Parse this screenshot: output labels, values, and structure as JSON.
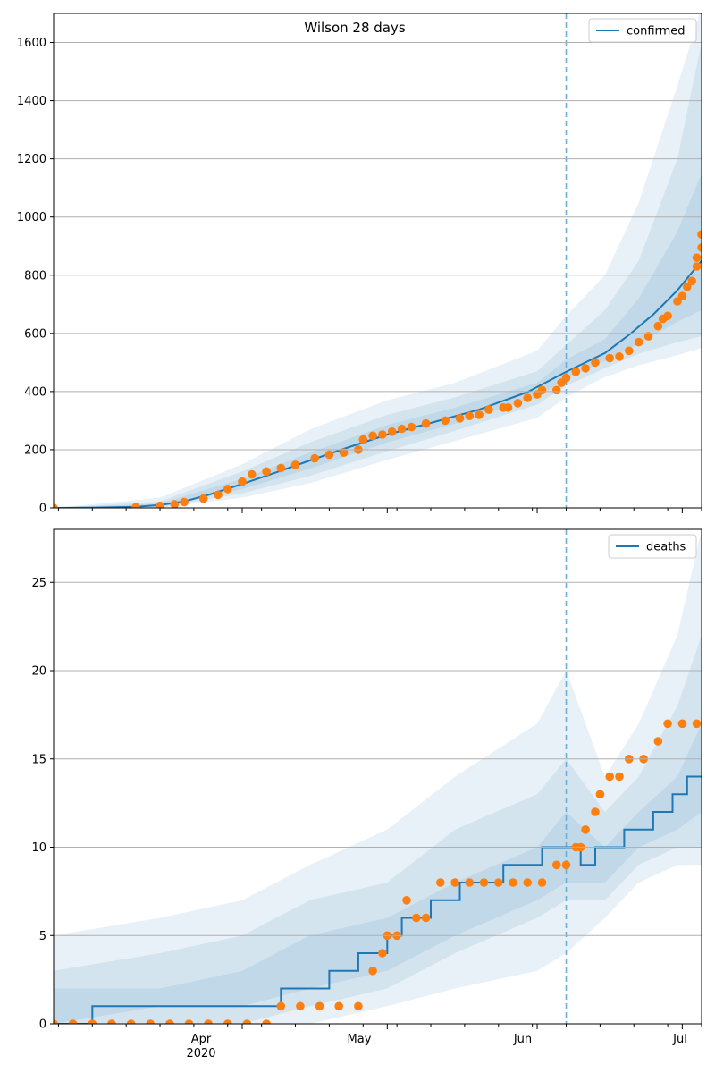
{
  "title": "Wilson 28 days",
  "x_tick_labels": [
    "Apr",
    "2020",
    "May",
    "Jun",
    "Jul"
  ],
  "colors": {
    "model_line": "#1f77b4",
    "observed_points": "#ff7f0e",
    "band_fill": "#1f77b4",
    "forecast_start_line": "#6baed6",
    "grid": "#b0b0b0"
  },
  "chart_data": [
    {
      "type": "line",
      "panel": "top",
      "x_type": "date",
      "x_range": [
        "2020-02-22",
        "2020-07-05"
      ],
      "forecast_start": "2020-06-07",
      "ylim": [
        0,
        1700
      ],
      "yticks": [
        0,
        200,
        400,
        600,
        800,
        1000,
        1200,
        1400,
        1600
      ],
      "grid": "horizontal",
      "legend": {
        "position": "top-right",
        "entries": [
          "confirmed"
        ]
      },
      "series": [
        {
          "name": "confirmed",
          "kind": "model",
          "points": [
            [
              "2020-02-22",
              0
            ],
            [
              "2020-03-01",
              1
            ],
            [
              "2020-03-10",
              4
            ],
            [
              "2020-03-15",
              10
            ],
            [
              "2020-03-20",
              22
            ],
            [
              "2020-03-25",
              45
            ],
            [
              "2020-04-01",
              82
            ],
            [
              "2020-04-08",
              122
            ],
            [
              "2020-04-15",
              163
            ],
            [
              "2020-04-22",
              203
            ],
            [
              "2020-05-01",
              252
            ],
            [
              "2020-05-10",
              292
            ],
            [
              "2020-05-20",
              338
            ],
            [
              "2020-05-30",
              398
            ],
            [
              "2020-06-07",
              468
            ],
            [
              "2020-06-15",
              532
            ],
            [
              "2020-06-20",
              595
            ],
            [
              "2020-06-25",
              665
            ],
            [
              "2020-06-30",
              748
            ],
            [
              "2020-07-05",
              850
            ]
          ]
        },
        {
          "kind": "observed",
          "points": [
            [
              "2020-02-22",
              0
            ],
            [
              "2020-03-10",
              2
            ],
            [
              "2020-03-15",
              7
            ],
            [
              "2020-03-18",
              12
            ],
            [
              "2020-03-20",
              20
            ],
            [
              "2020-03-24",
              32
            ],
            [
              "2020-03-27",
              45
            ],
            [
              "2020-03-29",
              65
            ],
            [
              "2020-04-01",
              90
            ],
            [
              "2020-04-03",
              115
            ],
            [
              "2020-04-06",
              125
            ],
            [
              "2020-04-09",
              137
            ],
            [
              "2020-04-12",
              148
            ],
            [
              "2020-04-16",
              170
            ],
            [
              "2020-04-19",
              183
            ],
            [
              "2020-04-22",
              190
            ],
            [
              "2020-04-25",
              200
            ],
            [
              "2020-04-26",
              235
            ],
            [
              "2020-04-28",
              248
            ],
            [
              "2020-04-30",
              252
            ],
            [
              "2020-05-02",
              262
            ],
            [
              "2020-05-04",
              272
            ],
            [
              "2020-05-06",
              278
            ],
            [
              "2020-05-09",
              290
            ],
            [
              "2020-05-13",
              300
            ],
            [
              "2020-05-16",
              308
            ],
            [
              "2020-05-18",
              316
            ],
            [
              "2020-05-20",
              320
            ],
            [
              "2020-05-22",
              338
            ],
            [
              "2020-05-25",
              345
            ],
            [
              "2020-05-26",
              345
            ],
            [
              "2020-05-28",
              360
            ],
            [
              "2020-05-30",
              378
            ],
            [
              "2020-06-01",
              390
            ],
            [
              "2020-06-02",
              405
            ],
            [
              "2020-06-05",
              405
            ],
            [
              "2020-06-06",
              430
            ],
            [
              "2020-06-07",
              447
            ],
            [
              "2020-06-09",
              468
            ],
            [
              "2020-06-11",
              480
            ],
            [
              "2020-06-13",
              500
            ],
            [
              "2020-06-16",
              515
            ],
            [
              "2020-06-18",
              520
            ],
            [
              "2020-06-20",
              540
            ],
            [
              "2020-06-22",
              570
            ],
            [
              "2020-06-24",
              590
            ],
            [
              "2020-06-26",
              625
            ],
            [
              "2020-06-27",
              650
            ],
            [
              "2020-06-28",
              660
            ],
            [
              "2020-06-30",
              710
            ],
            [
              "2020-07-01",
              728
            ],
            [
              "2020-07-02",
              760
            ],
            [
              "2020-07-03",
              780
            ],
            [
              "2020-07-04",
              830
            ],
            [
              "2020-07-04",
              860
            ],
            [
              "2020-07-05",
              895
            ],
            [
              "2020-07-05",
              940
            ]
          ]
        }
      ],
      "bands": [
        {
          "level": "outer",
          "dates": [
            "2020-02-22",
            "2020-03-15",
            "2020-04-01",
            "2020-04-15",
            "2020-05-01",
            "2020-05-15",
            "2020-06-01",
            "2020-06-07",
            "2020-06-15",
            "2020-06-22",
            "2020-06-30",
            "2020-07-05"
          ],
          "low": [
            0,
            0,
            35,
            85,
            165,
            230,
            310,
            380,
            450,
            490,
            525,
            550
          ],
          "high": [
            0,
            35,
            150,
            270,
            370,
            430,
            540,
            660,
            800,
            1050,
            1450,
            1720
          ]
        },
        {
          "level": "middle",
          "dates": [
            "2020-02-22",
            "2020-03-15",
            "2020-04-01",
            "2020-04-15",
            "2020-05-01",
            "2020-05-15",
            "2020-06-01",
            "2020-06-07",
            "2020-06-15",
            "2020-06-22",
            "2020-06-30",
            "2020-07-05"
          ],
          "low": [
            0,
            1,
            50,
            110,
            195,
            265,
            355,
            420,
            480,
            530,
            570,
            590
          ],
          "high": [
            0,
            22,
            125,
            225,
            320,
            380,
            470,
            560,
            680,
            850,
            1200,
            1600
          ]
        },
        {
          "level": "inner",
          "dates": [
            "2020-02-22",
            "2020-03-15",
            "2020-04-01",
            "2020-04-15",
            "2020-05-01",
            "2020-05-15",
            "2020-06-01",
            "2020-06-07",
            "2020-06-15",
            "2020-06-22",
            "2020-06-30",
            "2020-07-05"
          ],
          "low": [
            0,
            3,
            65,
            135,
            225,
            290,
            380,
            445,
            505,
            565,
            640,
            680
          ],
          "high": [
            0,
            15,
            100,
            190,
            285,
            345,
            430,
            510,
            580,
            720,
            950,
            1150
          ]
        }
      ]
    },
    {
      "type": "line",
      "panel": "bottom",
      "x_type": "date",
      "x_range": [
        "2020-02-22",
        "2020-07-05"
      ],
      "forecast_start": "2020-06-07",
      "ylim": [
        0,
        28
      ],
      "yticks": [
        0,
        5,
        10,
        15,
        20,
        25
      ],
      "grid": "horizontal",
      "legend": {
        "position": "top-right",
        "entries": [
          "deaths"
        ]
      },
      "series": [
        {
          "name": "deaths",
          "kind": "model-step",
          "points": [
            [
              "2020-02-22",
              0
            ],
            [
              "2020-03-01",
              1
            ],
            [
              "2020-04-09",
              2
            ],
            [
              "2020-04-19",
              3
            ],
            [
              "2020-04-25",
              4
            ],
            [
              "2020-05-01",
              5
            ],
            [
              "2020-05-04",
              6
            ],
            [
              "2020-05-10",
              7
            ],
            [
              "2020-05-16",
              8
            ],
            [
              "2020-05-25",
              9
            ],
            [
              "2020-06-02",
              10
            ],
            [
              "2020-06-10",
              9
            ],
            [
              "2020-06-13",
              10
            ],
            [
              "2020-06-19",
              11
            ],
            [
              "2020-06-25",
              12
            ],
            [
              "2020-06-29",
              13
            ],
            [
              "2020-07-02",
              14
            ],
            [
              "2020-07-05",
              14
            ]
          ]
        },
        {
          "kind": "observed",
          "points": [
            [
              "2020-02-22",
              0
            ],
            [
              "2020-02-26",
              0
            ],
            [
              "2020-03-01",
              0
            ],
            [
              "2020-03-05",
              0
            ],
            [
              "2020-03-09",
              0
            ],
            [
              "2020-03-13",
              0
            ],
            [
              "2020-03-17",
              0
            ],
            [
              "2020-03-21",
              0
            ],
            [
              "2020-03-25",
              0
            ],
            [
              "2020-03-29",
              0
            ],
            [
              "2020-04-02",
              0
            ],
            [
              "2020-04-06",
              0
            ],
            [
              "2020-04-09",
              1
            ],
            [
              "2020-04-13",
              1
            ],
            [
              "2020-04-17",
              1
            ],
            [
              "2020-04-21",
              1
            ],
            [
              "2020-04-25",
              1
            ],
            [
              "2020-04-28",
              3
            ],
            [
              "2020-04-30",
              4
            ],
            [
              "2020-05-01",
              5
            ],
            [
              "2020-05-03",
              5
            ],
            [
              "2020-05-05",
              7
            ],
            [
              "2020-05-07",
              6
            ],
            [
              "2020-05-09",
              6
            ],
            [
              "2020-05-12",
              8
            ],
            [
              "2020-05-15",
              8
            ],
            [
              "2020-05-18",
              8
            ],
            [
              "2020-05-21",
              8
            ],
            [
              "2020-05-24",
              8
            ],
            [
              "2020-05-27",
              8
            ],
            [
              "2020-05-30",
              8
            ],
            [
              "2020-06-02",
              8
            ],
            [
              "2020-06-05",
              9
            ],
            [
              "2020-06-07",
              9
            ],
            [
              "2020-06-09",
              10
            ],
            [
              "2020-06-10",
              10
            ],
            [
              "2020-06-11",
              11
            ],
            [
              "2020-06-13",
              12
            ],
            [
              "2020-06-14",
              13
            ],
            [
              "2020-06-16",
              14
            ],
            [
              "2020-06-18",
              14
            ],
            [
              "2020-06-20",
              15
            ],
            [
              "2020-06-23",
              15
            ],
            [
              "2020-06-26",
              16
            ],
            [
              "2020-06-28",
              17
            ],
            [
              "2020-07-01",
              17
            ],
            [
              "2020-07-04",
              17
            ]
          ]
        }
      ],
      "bands": [
        {
          "level": "outer",
          "dates": [
            "2020-02-22",
            "2020-03-15",
            "2020-04-01",
            "2020-04-15",
            "2020-05-01",
            "2020-05-15",
            "2020-06-01",
            "2020-06-07",
            "2020-06-15",
            "2020-06-22",
            "2020-06-30",
            "2020-07-05"
          ],
          "low": [
            0,
            0,
            0,
            0,
            1,
            2,
            3,
            4,
            6,
            8,
            9,
            9
          ],
          "high": [
            5,
            6,
            7,
            9,
            11,
            14,
            17,
            20,
            14,
            17,
            22,
            28
          ]
        },
        {
          "level": "middle",
          "dates": [
            "2020-02-22",
            "2020-03-15",
            "2020-04-01",
            "2020-04-15",
            "2020-05-01",
            "2020-05-15",
            "2020-06-01",
            "2020-06-07",
            "2020-06-15",
            "2020-06-22",
            "2020-06-30",
            "2020-07-05"
          ],
          "low": [
            0,
            0,
            0,
            1,
            2,
            4,
            6,
            7,
            7,
            9,
            10,
            10
          ],
          "high": [
            3,
            4,
            5,
            7,
            8,
            11,
            13,
            15,
            12,
            14,
            18,
            22
          ]
        },
        {
          "level": "inner",
          "dates": [
            "2020-02-22",
            "2020-03-15",
            "2020-04-01",
            "2020-04-15",
            "2020-05-01",
            "2020-05-15",
            "2020-06-01",
            "2020-06-07",
            "2020-06-15",
            "2020-06-22",
            "2020-06-30",
            "2020-07-05"
          ],
          "low": [
            0,
            1,
            1,
            2,
            3,
            5,
            7,
            8,
            8,
            10,
            11,
            12
          ],
          "high": [
            2,
            2,
            3,
            5,
            6,
            8,
            10,
            12,
            10,
            12,
            14,
            17
          ]
        }
      ]
    }
  ]
}
